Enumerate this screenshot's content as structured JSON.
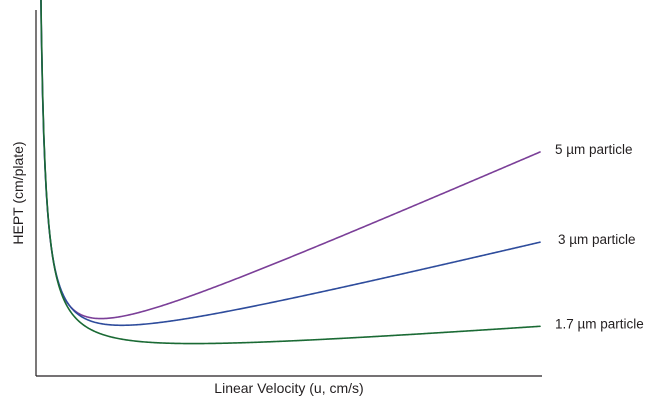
{
  "chart_data": {
    "type": "line",
    "title": "",
    "xlabel": "Linear Velocity (u, cm/s)",
    "ylabel": "HEPT (cm/plate)",
    "xlim": [
      0,
      100
    ],
    "ylim": [
      0,
      100
    ],
    "ticks": false,
    "grid": false,
    "legend": "inline-right",
    "series": [
      {
        "name": "5 µm particle",
        "color": "#7b3f98",
        "A": 0.2,
        "B": 100,
        "C": 0.6
      },
      {
        "name": "3 µm particle",
        "color": "#2e4c9c",
        "A": 2.6,
        "B": 96,
        "C": 0.33
      },
      {
        "name": "1.7 µm particle",
        "color": "#1a6a34",
        "A": 2.6,
        "B": 98,
        "C": 0.1
      }
    ]
  }
}
